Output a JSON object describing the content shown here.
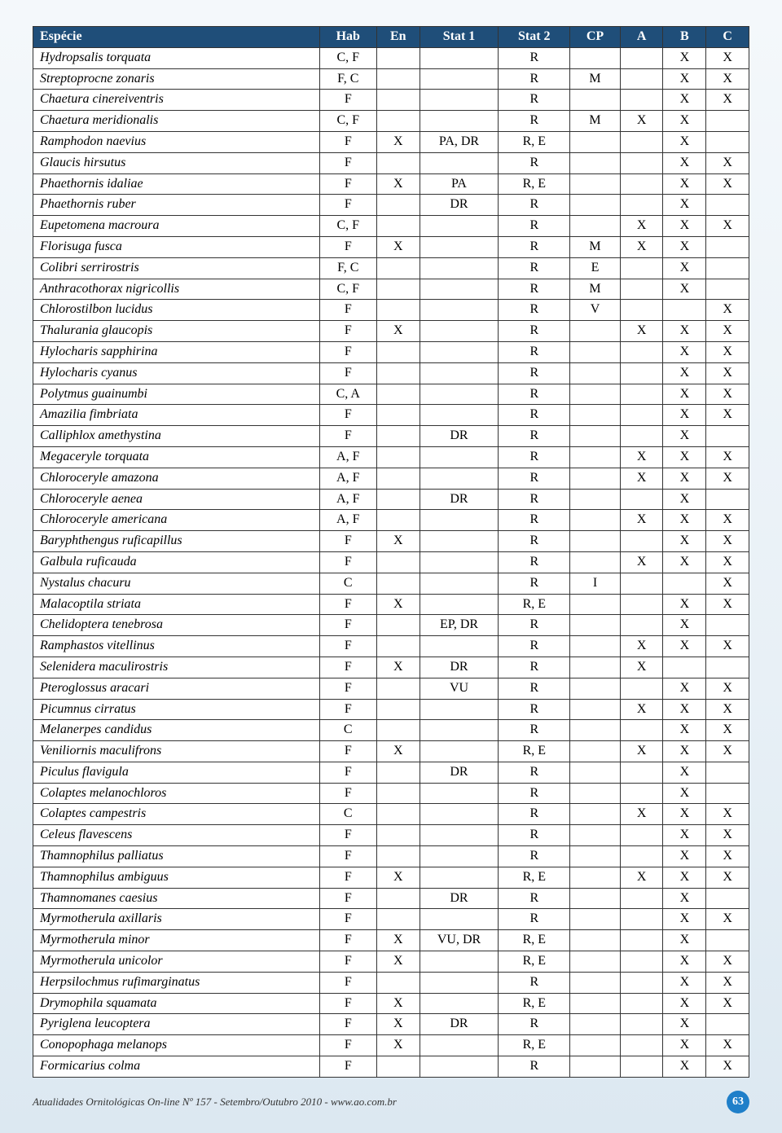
{
  "table": {
    "header_bg": "#1f4e79",
    "header_fg": "#ffffff",
    "border_color": "#333333",
    "columns": [
      "Espécie",
      "Hab",
      "En",
      "Stat 1",
      "Stat 2",
      "CP",
      "A",
      "B",
      "C"
    ],
    "rows": [
      [
        "Hydropsalis torquata",
        "C, F",
        "",
        "",
        "R",
        "",
        "",
        "X",
        "X"
      ],
      [
        "Streptoprocne zonaris",
        "F, C",
        "",
        "",
        "R",
        "M",
        "",
        "X",
        "X"
      ],
      [
        "Chaetura cinereiventris",
        "F",
        "",
        "",
        "R",
        "",
        "",
        "X",
        "X"
      ],
      [
        "Chaetura meridionalis",
        "C, F",
        "",
        "",
        "R",
        "M",
        "X",
        "X",
        ""
      ],
      [
        "Ramphodon naevius",
        "F",
        "X",
        "PA, DR",
        "R, E",
        "",
        "",
        "X",
        ""
      ],
      [
        "Glaucis hirsutus",
        "F",
        "",
        "",
        "R",
        "",
        "",
        "X",
        "X"
      ],
      [
        "Phaethornis idaliae",
        "F",
        "X",
        "PA",
        "R, E",
        "",
        "",
        "X",
        "X"
      ],
      [
        "Phaethornis ruber",
        "F",
        "",
        "DR",
        "R",
        "",
        "",
        "X",
        ""
      ],
      [
        "Eupetomena macroura",
        "C, F",
        "",
        "",
        "R",
        "",
        "X",
        "X",
        "X"
      ],
      [
        "Florisuga fusca",
        "F",
        "X",
        "",
        "R",
        "M",
        "X",
        "X",
        ""
      ],
      [
        "Colibri serrirostris",
        "F, C",
        "",
        "",
        "R",
        "E",
        "",
        "X",
        ""
      ],
      [
        "Anthracothorax nigricollis",
        "C, F",
        "",
        "",
        "R",
        "M",
        "",
        "X",
        ""
      ],
      [
        "Chlorostilbon lucidus",
        "F",
        "",
        "",
        "R",
        "V",
        "",
        "",
        "X"
      ],
      [
        "Thalurania glaucopis",
        "F",
        "X",
        "",
        "R",
        "",
        "X",
        "X",
        "X"
      ],
      [
        "Hylocharis sapphirina",
        "F",
        "",
        "",
        "R",
        "",
        "",
        "X",
        "X"
      ],
      [
        "Hylocharis cyanus",
        "F",
        "",
        "",
        "R",
        "",
        "",
        "X",
        "X"
      ],
      [
        "Polytmus guainumbi",
        "C, A",
        "",
        "",
        "R",
        "",
        "",
        "X",
        "X"
      ],
      [
        "Amazilia fimbriata",
        "F",
        "",
        "",
        "R",
        "",
        "",
        "X",
        "X"
      ],
      [
        "Calliphlox amethystina",
        "F",
        "",
        "DR",
        "R",
        "",
        "",
        "X",
        ""
      ],
      [
        "Megaceryle torquata",
        "A, F",
        "",
        "",
        "R",
        "",
        "X",
        "X",
        "X"
      ],
      [
        "Chloroceryle amazona",
        "A, F",
        "",
        "",
        "R",
        "",
        "X",
        "X",
        "X"
      ],
      [
        "Chloroceryle aenea",
        "A, F",
        "",
        "DR",
        "R",
        "",
        "",
        "X",
        ""
      ],
      [
        "Chloroceryle americana",
        "A, F",
        "",
        "",
        "R",
        "",
        "X",
        "X",
        "X"
      ],
      [
        "Baryphthengus ruficapillus",
        "F",
        "X",
        "",
        "R",
        "",
        "",
        "X",
        "X"
      ],
      [
        "Galbula ruficauda",
        "F",
        "",
        "",
        "R",
        "",
        "X",
        "X",
        "X"
      ],
      [
        "Nystalus chacuru",
        "C",
        "",
        "",
        "R",
        "I",
        "",
        "",
        "X"
      ],
      [
        "Malacoptila striata",
        "F",
        "X",
        "",
        "R, E",
        "",
        "",
        "X",
        "X"
      ],
      [
        "Chelidoptera tenebrosa",
        "F",
        "",
        "EP, DR",
        "R",
        "",
        "",
        "X",
        ""
      ],
      [
        "Ramphastos vitellinus",
        "F",
        "",
        "",
        "R",
        "",
        "X",
        "X",
        "X"
      ],
      [
        "Selenidera maculirostris",
        "F",
        "X",
        "DR",
        "R",
        "",
        "X",
        "",
        ""
      ],
      [
        "Pteroglossus aracari",
        "F",
        "",
        "VU",
        "R",
        "",
        "",
        "X",
        "X"
      ],
      [
        "Picumnus cirratus",
        "F",
        "",
        "",
        "R",
        "",
        "X",
        "X",
        "X"
      ],
      [
        "Melanerpes candidus",
        "C",
        "",
        "",
        "R",
        "",
        "",
        "X",
        "X"
      ],
      [
        "Veniliornis maculifrons",
        "F",
        "X",
        "",
        "R, E",
        "",
        "X",
        "X",
        "X"
      ],
      [
        "Piculus flavigula",
        "F",
        "",
        "DR",
        "R",
        "",
        "",
        "X",
        ""
      ],
      [
        "Colaptes melanochloros",
        "F",
        "",
        "",
        "R",
        "",
        "",
        "X",
        ""
      ],
      [
        "Colaptes campestris",
        "C",
        "",
        "",
        "R",
        "",
        "X",
        "X",
        "X"
      ],
      [
        "Celeus flavescens",
        "F",
        "",
        "",
        "R",
        "",
        "",
        "X",
        "X"
      ],
      [
        "Thamnophilus palliatus",
        "F",
        "",
        "",
        "R",
        "",
        "",
        "X",
        "X"
      ],
      [
        "Thamnophilus ambiguus",
        "F",
        "X",
        "",
        "R, E",
        "",
        "X",
        "X",
        "X"
      ],
      [
        "Thamnomanes caesius",
        "F",
        "",
        "DR",
        "R",
        "",
        "",
        "X",
        ""
      ],
      [
        "Myrmotherula axillaris",
        "F",
        "",
        "",
        "R",
        "",
        "",
        "X",
        "X"
      ],
      [
        "Myrmotherula minor",
        "F",
        "X",
        "VU, DR",
        "R, E",
        "",
        "",
        "X",
        ""
      ],
      [
        "Myrmotherula unicolor",
        "F",
        "X",
        "",
        "R, E",
        "",
        "",
        "X",
        "X"
      ],
      [
        "Herpsilochmus rufimarginatus",
        "F",
        "",
        "",
        "R",
        "",
        "",
        "X",
        "X"
      ],
      [
        "Drymophila squamata",
        "F",
        "X",
        "",
        "R, E",
        "",
        "",
        "X",
        "X"
      ],
      [
        "Pyriglena leucoptera",
        "F",
        "X",
        "DR",
        "R",
        "",
        "",
        "X",
        ""
      ],
      [
        "Conopophaga melanops",
        "F",
        "X",
        "",
        "R, E",
        "",
        "",
        "X",
        "X"
      ],
      [
        "Formicarius colma",
        "F",
        "",
        "",
        "R",
        "",
        "",
        "X",
        "X"
      ]
    ]
  },
  "footer": {
    "text": "Atualidades Ornitológicas On-line Nº 157 - Setembro/Outubro 2010 - www.ao.com.br",
    "page_number": "63",
    "badge_bg": "#1f7fc9",
    "badge_fg": "#ffffff"
  }
}
